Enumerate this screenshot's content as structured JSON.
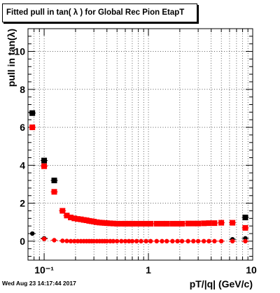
{
  "title": "Fitted pull in tan( λ ) for Global Rec Pion EtapT",
  "datestamp": "Wed Aug 23 14:17:44 2017",
  "chart_data": {
    "type": "scatter",
    "xlabel": "pT/|q| (GeV/c)",
    "ylabel": "pull in tan(λ)",
    "xscale": "log",
    "xlim": [
      0.07,
      10
    ],
    "ylim": [
      -1,
      11.2
    ],
    "x_tick_labels": [
      "10⁻¹",
      "1",
      "10"
    ],
    "y_tick_labels": [
      "0",
      "2",
      "4",
      "6",
      "8",
      "10"
    ],
    "grid": true,
    "colors": {
      "black_series": "#000000",
      "red_series": "#ff0000"
    },
    "series": [
      {
        "marker": "square",
        "color": "#000000",
        "x": [
          0.077,
          0.1,
          0.125
        ],
        "y": [
          6.75,
          4.25,
          3.2
        ]
      },
      {
        "marker": "circle",
        "color": "#000000",
        "x": [
          0.077,
          0.1,
          6.4,
          8.5
        ],
        "y": [
          0.4,
          0.15,
          0.1,
          0.15
        ]
      },
      {
        "marker": "square",
        "color": "#000000",
        "x": [
          8.5
        ],
        "y": [
          1.25
        ]
      },
      {
        "marker": "square",
        "color": "#ff0000",
        "x": [
          0.077,
          0.1,
          0.125,
          0.15,
          0.165,
          0.18,
          0.195,
          0.21,
          0.225,
          0.24,
          0.255,
          0.27,
          0.285,
          0.3,
          0.32,
          0.34,
          0.36,
          0.38,
          0.4,
          0.43,
          0.46,
          0.5,
          0.55,
          0.6,
          0.65,
          0.7,
          0.77,
          0.85,
          0.95,
          1.05,
          1.2,
          1.35,
          1.5,
          1.7,
          1.9,
          2.1,
          2.4,
          2.7,
          3.0,
          3.4,
          3.8,
          4.3,
          5.0,
          6.4,
          8.5
        ],
        "y": [
          6.0,
          3.95,
          2.6,
          1.6,
          1.35,
          1.25,
          1.2,
          1.17,
          1.15,
          1.12,
          1.1,
          1.07,
          1.05,
          1.03,
          1.0,
          0.98,
          0.97,
          0.96,
          0.95,
          0.94,
          0.93,
          0.92,
          0.92,
          0.92,
          0.92,
          0.92,
          0.92,
          0.92,
          0.92,
          0.92,
          0.92,
          0.92,
          0.92,
          0.92,
          0.92,
          0.92,
          0.93,
          0.93,
          0.93,
          0.94,
          0.95,
          0.95,
          0.97,
          0.97,
          0.7
        ]
      },
      {
        "marker": "circle",
        "color": "#ff0000",
        "x": [
          0.1,
          0.125,
          0.15,
          0.165,
          0.18,
          0.195,
          0.21,
          0.225,
          0.24,
          0.255,
          0.27,
          0.285,
          0.3,
          0.32,
          0.34,
          0.36,
          0.38,
          0.4,
          0.43,
          0.46,
          0.5,
          0.55,
          0.6,
          0.65,
          0.7,
          0.77,
          0.85,
          0.95,
          1.05,
          1.2,
          1.35,
          1.5,
          1.7,
          1.9,
          2.1,
          2.4,
          2.7,
          3.0,
          3.4,
          3.8,
          4.3,
          5.0,
          6.4,
          8.5
        ],
        "y": [
          0.12,
          0.05,
          0.02,
          0.01,
          0.0,
          0.0,
          0.0,
          0.0,
          0.0,
          0.0,
          0.0,
          0.0,
          0.0,
          0.0,
          0.0,
          0.0,
          0.0,
          0.0,
          0.0,
          0.0,
          0.0,
          0.0,
          0.0,
          0.0,
          0.0,
          0.0,
          0.0,
          0.0,
          0.0,
          0.0,
          0.0,
          0.0,
          0.0,
          0.0,
          0.0,
          0.0,
          0.0,
          0.0,
          0.0,
          0.0,
          0.0,
          0.0,
          0.0,
          0.0
        ]
      }
    ]
  }
}
